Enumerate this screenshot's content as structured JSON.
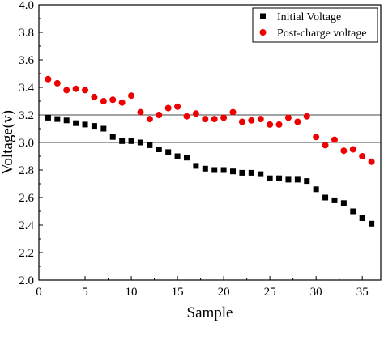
{
  "chart_data": {
    "type": "scatter",
    "xlabel": "Sample",
    "ylabel": "Voltage(v)",
    "xlim": [
      0,
      37
    ],
    "ylim": [
      2.0,
      4.0
    ],
    "xticks": [
      0,
      5,
      10,
      15,
      20,
      25,
      30,
      35
    ],
    "yticks": [
      2.0,
      2.2,
      2.4,
      2.6,
      2.8,
      3.0,
      3.2,
      3.4,
      3.6,
      3.8,
      4.0
    ],
    "reference_lines": [
      3.0,
      3.2
    ],
    "legend_position": "top-right",
    "grid": false,
    "series": [
      {
        "name": "Initial Voltage",
        "marker": "square",
        "color": "#000000",
        "x": [
          1,
          2,
          3,
          4,
          5,
          6,
          7,
          8,
          9,
          10,
          11,
          12,
          13,
          14,
          15,
          16,
          17,
          18,
          19,
          20,
          21,
          22,
          23,
          24,
          25,
          26,
          27,
          28,
          29,
          30,
          31,
          32,
          33,
          34,
          35,
          36
        ],
        "values": [
          3.18,
          3.17,
          3.16,
          3.14,
          3.13,
          3.12,
          3.1,
          3.04,
          3.01,
          3.01,
          3.0,
          2.98,
          2.95,
          2.93,
          2.9,
          2.89,
          2.83,
          2.81,
          2.8,
          2.8,
          2.79,
          2.78,
          2.78,
          2.77,
          2.74,
          2.74,
          2.73,
          2.73,
          2.72,
          2.66,
          2.6,
          2.58,
          2.56,
          2.5,
          2.45,
          2.41
        ]
      },
      {
        "name": "Post-charge voltage",
        "marker": "circle",
        "color": "#ee0000",
        "x": [
          1,
          2,
          3,
          4,
          5,
          6,
          7,
          8,
          9,
          10,
          11,
          12,
          13,
          14,
          15,
          16,
          17,
          18,
          19,
          20,
          21,
          22,
          23,
          24,
          25,
          26,
          27,
          28,
          29,
          30,
          31,
          32,
          33,
          34,
          35,
          36
        ],
        "values": [
          3.46,
          3.43,
          3.38,
          3.39,
          3.38,
          3.33,
          3.3,
          3.31,
          3.29,
          3.34,
          3.22,
          3.17,
          3.2,
          3.25,
          3.26,
          3.19,
          3.21,
          3.17,
          3.17,
          3.18,
          3.22,
          3.15,
          3.16,
          3.17,
          3.13,
          3.13,
          3.18,
          3.15,
          3.19,
          3.04,
          2.98,
          3.02,
          2.94,
          2.95,
          2.9,
          2.86
        ]
      }
    ]
  }
}
